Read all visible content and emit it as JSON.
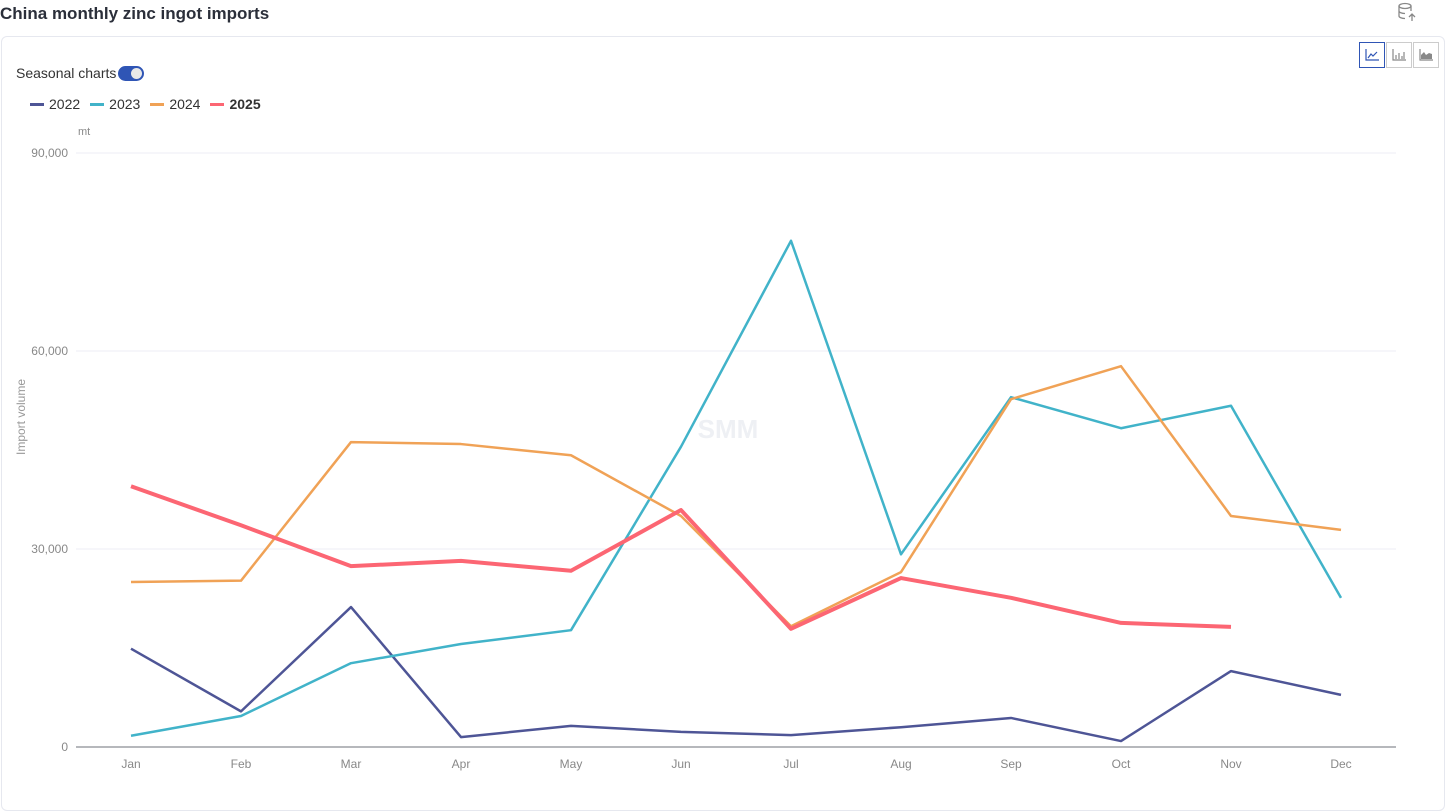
{
  "header": {
    "title": "China monthly zinc ingot imports",
    "export_icon": "database-export-icon"
  },
  "controls": {
    "seasonal_label": "Seasonal charts",
    "seasonal_on": true,
    "chart_types": [
      {
        "icon": "line-chart-icon",
        "active": true
      },
      {
        "icon": "bar-chart-icon",
        "active": false
      },
      {
        "icon": "area-chart-icon",
        "active": false
      }
    ]
  },
  "watermark": "SMM",
  "chart_data": {
    "type": "line",
    "unit": "mt",
    "ylabel": "Import volume",
    "xlabel": "",
    "ylim": [
      0,
      90000
    ],
    "yticks": [
      "0",
      "30,000",
      "60,000",
      "90,000"
    ],
    "ytick_values": [
      0,
      30000,
      60000,
      90000
    ],
    "grid": true,
    "legend_position": "top-left",
    "categories": [
      "Jan",
      "Feb",
      "Mar",
      "Apr",
      "May",
      "Jun",
      "Jul",
      "Aug",
      "Sep",
      "Oct",
      "Nov",
      "Dec"
    ],
    "series": [
      {
        "name": "2022",
        "color": "#4e5596",
        "values": [
          14900,
          5400,
          21200,
          1500,
          3200,
          2300,
          1800,
          3000,
          4400,
          900,
          11500,
          7900
        ]
      },
      {
        "name": "2023",
        "color": "#41b3c9",
        "values": [
          1700,
          4700,
          12700,
          15600,
          17700,
          45500,
          76700,
          29200,
          53000,
          48300,
          51700,
          22600
        ]
      },
      {
        "name": "2024",
        "color": "#f0a256",
        "values": [
          25000,
          25200,
          46200,
          45900,
          44200,
          35000,
          18300,
          26500,
          52700,
          57700,
          35000,
          32900
        ]
      },
      {
        "name": "2025",
        "color": "#fc6673",
        "bold": true,
        "values": [
          39500,
          33600,
          27400,
          28200,
          26700,
          35900,
          17900,
          25600,
          22600,
          18800,
          18200,
          null
        ]
      }
    ]
  }
}
